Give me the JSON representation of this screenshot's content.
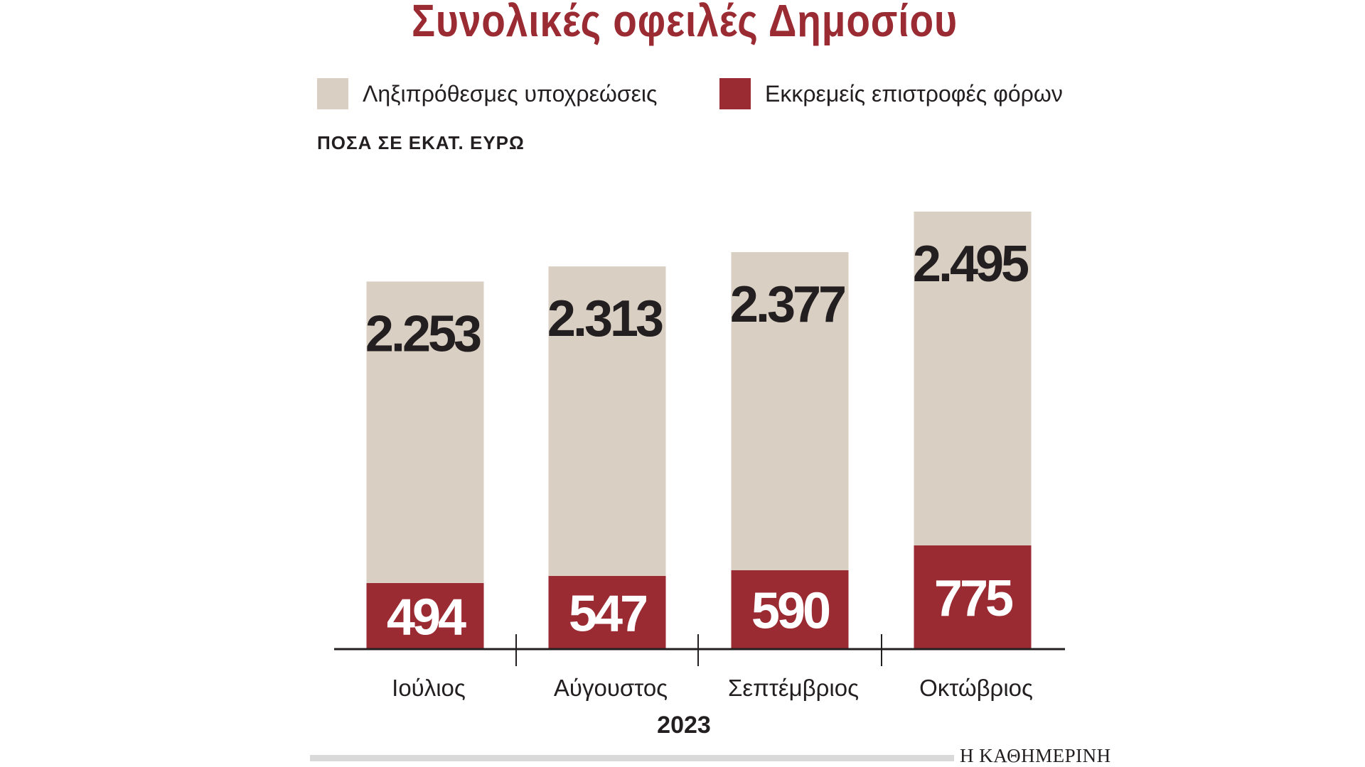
{
  "chart_data": {
    "type": "bar",
    "stacked": true,
    "title": "Συνολικές οφειλές Δημοσίου",
    "subtitle": "ΠΟΣΑ ΣΕ ΕΚΑΤ. ΕΥΡΩ",
    "xlabel": "2023",
    "ylabel": "",
    "categories": [
      "Ιούλιος",
      "Αύγουστος",
      "Σεπτέμβριος",
      "Οκτώβριος"
    ],
    "series": [
      {
        "name": "Εκκρεμείς επιστροφές φόρων",
        "values": [
          494,
          547,
          590,
          775
        ],
        "labels": [
          "494",
          "547",
          "590",
          "775"
        ],
        "color": "#9b2b32"
      },
      {
        "name": "Ληξιπρόθεσμες υποχρεώσεις",
        "values": [
          2253,
          2313,
          2377,
          2495
        ],
        "labels": [
          "2.253",
          "2.313",
          "2.377",
          "2.495"
        ],
        "color": "#dacfc3"
      }
    ],
    "ylim": [
      0,
      3450
    ],
    "grid": false,
    "legend": "top"
  },
  "source": "Η ΚΑΘΗΜΕΡΙΝΗ"
}
